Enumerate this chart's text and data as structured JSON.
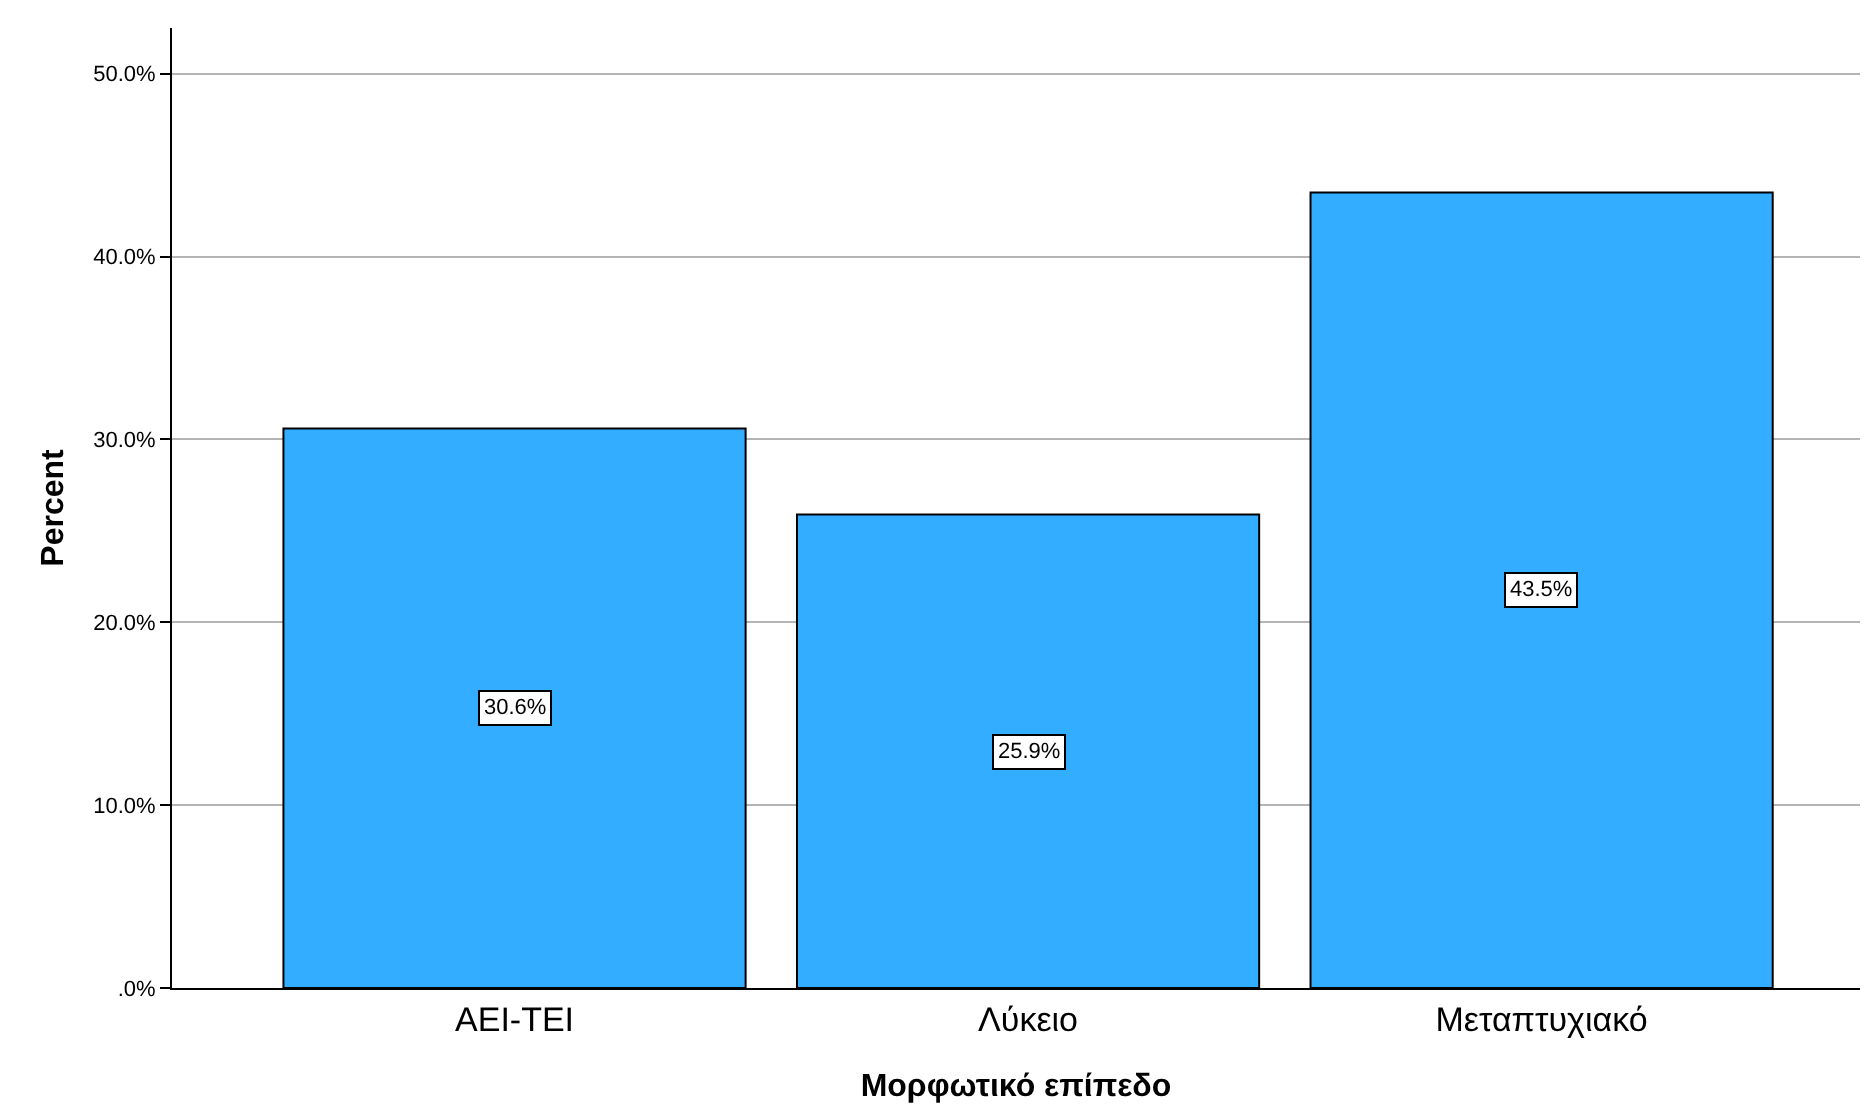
{
  "chart_data": {
    "type": "bar",
    "xlabel": "Μορφωτικό επίπεδο",
    "ylabel": "Percent",
    "categories": [
      "ΑΕΙ-ΤΕΙ",
      "Λύκειο",
      "Μεταπτυχιακό"
    ],
    "values": [
      30.6,
      25.9,
      43.5
    ],
    "value_labels": [
      "30.6%",
      "25.9%",
      "43.5%"
    ],
    "color": "#33adff",
    "ylim": [
      0,
      52.5
    ],
    "yticks": [
      {
        "value": 0,
        "label": ".0%"
      },
      {
        "value": 10,
        "label": "10.0%"
      },
      {
        "value": 20,
        "label": "20.0%"
      },
      {
        "value": 30,
        "label": "30.0%"
      },
      {
        "value": 40,
        "label": "40.0%"
      },
      {
        "value": 50,
        "label": "50.0%"
      }
    ],
    "grid": "y",
    "legend": false
  }
}
